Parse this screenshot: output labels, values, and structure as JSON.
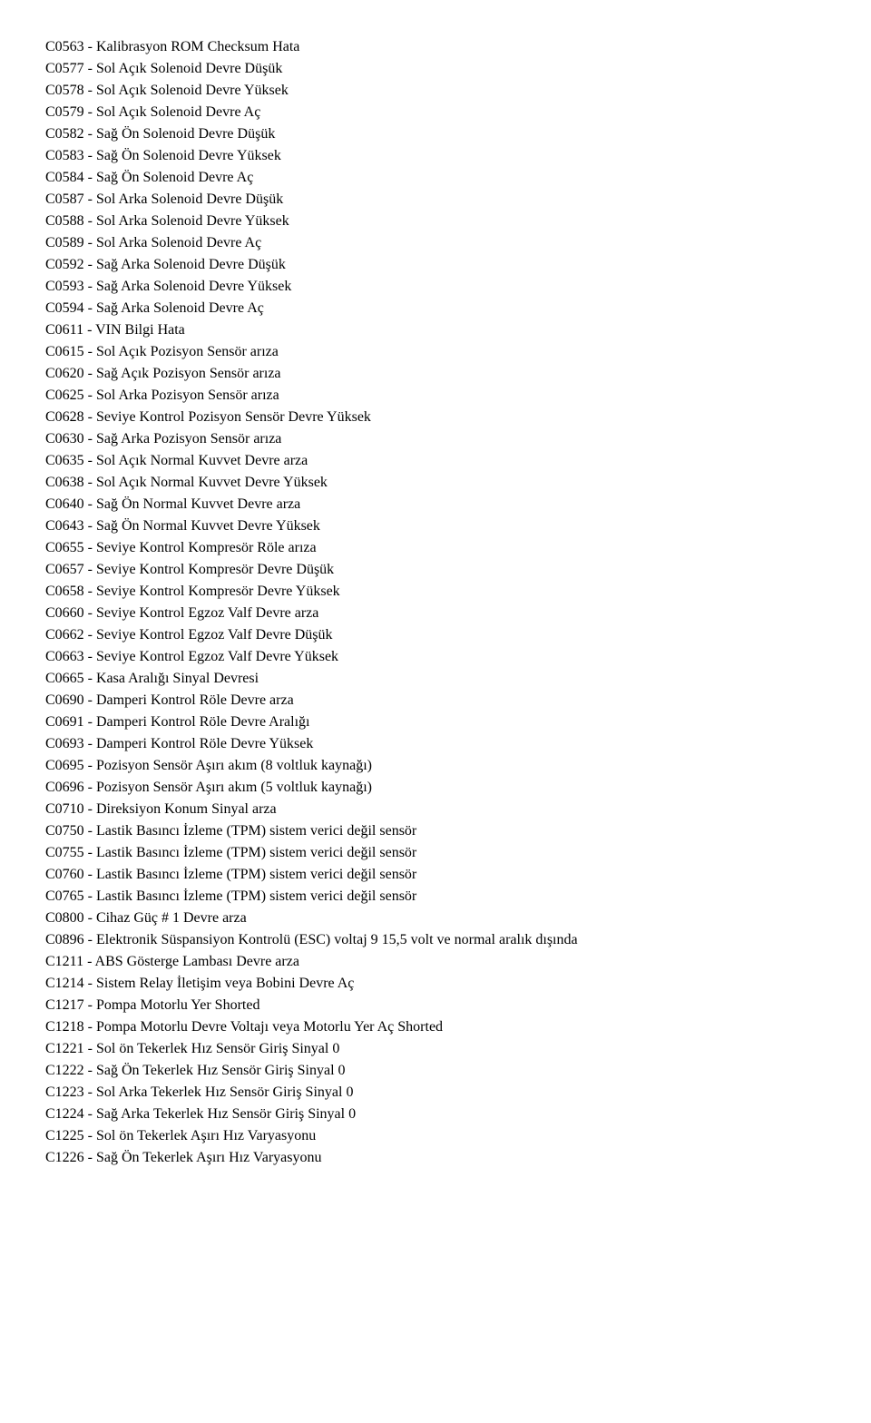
{
  "codes": [
    {
      "code": "C0563",
      "desc": "Kalibrasyon ROM Checksum Hata"
    },
    {
      "code": "C0577",
      "desc": "Sol Açık Solenoid Devre Düşük"
    },
    {
      "code": "C0578",
      "desc": "Sol Açık Solenoid Devre Yüksek"
    },
    {
      "code": "C0579",
      "desc": "Sol Açık Solenoid Devre Aç"
    },
    {
      "code": "C0582",
      "desc": "Sağ Ön Solenoid Devre Düşük"
    },
    {
      "code": "C0583",
      "desc": "Sağ Ön Solenoid Devre Yüksek"
    },
    {
      "code": "C0584",
      "desc": "Sağ Ön Solenoid Devre Aç"
    },
    {
      "code": "C0587",
      "desc": "Sol Arka Solenoid Devre Düşük"
    },
    {
      "code": "C0588",
      "desc": "Sol Arka Solenoid Devre Yüksek"
    },
    {
      "code": "C0589",
      "desc": "Sol Arka Solenoid Devre Aç"
    },
    {
      "code": "C0592",
      "desc": "Sağ Arka Solenoid Devre Düşük"
    },
    {
      "code": "C0593",
      "desc": "Sağ Arka Solenoid Devre Yüksek"
    },
    {
      "code": "C0594",
      "desc": "Sağ Arka Solenoid Devre Aç"
    },
    {
      "code": "C0611",
      "desc": "VIN Bilgi Hata"
    },
    {
      "code": "C0615",
      "desc": "Sol Açık Pozisyon Sensör arıza"
    },
    {
      "code": "C0620",
      "desc": "Sağ Açık Pozisyon Sensör arıza"
    },
    {
      "code": "C0625",
      "desc": "Sol Arka Pozisyon Sensör arıza"
    },
    {
      "code": "C0628",
      "desc": "Seviye Kontrol Pozisyon Sensör Devre Yüksek"
    },
    {
      "code": "C0630",
      "desc": "Sağ Arka Pozisyon Sensör arıza"
    },
    {
      "code": "C0635",
      "desc": "Sol Açık Normal Kuvvet Devre arza"
    },
    {
      "code": "C0638",
      "desc": "Sol Açık Normal Kuvvet Devre Yüksek"
    },
    {
      "code": "C0640",
      "desc": "Sağ Ön Normal Kuvvet Devre arza"
    },
    {
      "code": "C0643",
      "desc": "Sağ Ön Normal Kuvvet Devre Yüksek"
    },
    {
      "code": "C0655",
      "desc": "Seviye Kontrol Kompresör Röle arıza"
    },
    {
      "code": "C0657",
      "desc": "Seviye Kontrol Kompresör Devre Düşük"
    },
    {
      "code": "C0658",
      "desc": "Seviye Kontrol Kompresör Devre Yüksek"
    },
    {
      "code": "C0660",
      "desc": "Seviye Kontrol Egzoz Valf Devre arza"
    },
    {
      "code": "C0662",
      "desc": "Seviye Kontrol Egzoz Valf Devre Düşük"
    },
    {
      "code": "C0663",
      "desc": "Seviye Kontrol Egzoz Valf Devre Yüksek"
    },
    {
      "code": "C0665",
      "desc": "Kasa Aralığı Sinyal Devresi"
    },
    {
      "code": "C0690",
      "desc": "Damperi Kontrol Röle Devre arza"
    },
    {
      "code": "C0691",
      "desc": "Damperi Kontrol Röle Devre Aralığı"
    },
    {
      "code": "C0693",
      "desc": "Damperi Kontrol Röle Devre Yüksek"
    },
    {
      "code": "C0695",
      "desc": "Pozisyon Sensör Aşırı akım (8 voltluk kaynağı)"
    },
    {
      "code": "C0696",
      "desc": "Pozisyon Sensör Aşırı akım (5 voltluk kaynağı)"
    },
    {
      "code": "C0710",
      "desc": "Direksiyon Konum Sinyal arza"
    },
    {
      "code": "C0750",
      "desc": "Lastik Basıncı İzleme (TPM) sistem verici değil sensör"
    },
    {
      "code": "C0755",
      "desc": "Lastik Basıncı İzleme (TPM) sistem verici değil sensör"
    },
    {
      "code": "C0760",
      "desc": "Lastik Basıncı İzleme (TPM) sistem verici değil sensör"
    },
    {
      "code": "C0765",
      "desc": "Lastik Basıncı İzleme (TPM) sistem verici değil sensör"
    },
    {
      "code": "C0800",
      "desc": "Cihaz Güç # 1 Devre arza"
    },
    {
      "code": "C0896",
      "desc": "Elektronik Süspansiyon Kontrolü (ESC) voltaj 9 15,5 volt ve normal aralık dışında"
    },
    {
      "code": "C1211",
      "desc": "ABS Gösterge Lambası Devre arza"
    },
    {
      "code": "C1214",
      "desc": "Sistem Relay İletişim veya Bobini Devre Aç"
    },
    {
      "code": "C1217",
      "desc": "Pompa Motorlu Yer Shorted"
    },
    {
      "code": "C1218",
      "desc": "Pompa Motorlu Devre Voltajı veya Motorlu Yer Aç Shorted"
    },
    {
      "code": "C1221",
      "desc": "Sol ön Tekerlek Hız Sensör Giriş Sinyal 0"
    },
    {
      "code": "C1222",
      "desc": "Sağ Ön Tekerlek Hız Sensör Giriş Sinyal 0"
    },
    {
      "code": "C1223",
      "desc": "Sol Arka Tekerlek Hız Sensör Giriş Sinyal 0"
    },
    {
      "code": "C1224",
      "desc": "Sağ Arka Tekerlek Hız Sensör Giriş Sinyal 0"
    },
    {
      "code": "C1225",
      "desc": "Sol ön Tekerlek Aşırı Hız Varyasyonu"
    },
    {
      "code": "C1226",
      "desc": "Sağ Ön Tekerlek Aşırı Hız Varyasyonu"
    }
  ]
}
